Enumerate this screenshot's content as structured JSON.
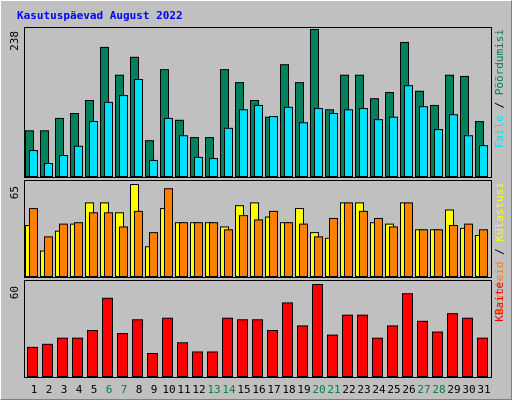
{
  "title": "Kasutuspäevad August 2022",
  "chart_data": [
    {
      "type": "bar",
      "ylim": [
        0,
        238
      ],
      "yticks": [
        238
      ],
      "legend_separator": " / ",
      "series": [
        {
          "name": "Pöördumisi",
          "color": "#00805c",
          "values": [
            74,
            74,
            94,
            102,
            123,
            209,
            164,
            193,
            58,
            173,
            91,
            63,
            63,
            173,
            152,
            123,
            96,
            181,
            152,
            238,
            108,
            164,
            164,
            126,
            136,
            217,
            138,
            115,
            164,
            162,
            89
          ]
        },
        {
          "name": "Faile",
          "color": "#00e0ff",
          "values": [
            42,
            21,
            34,
            49,
            89,
            120,
            131,
            157,
            26,
            94,
            66,
            31,
            29,
            78,
            108,
            115,
            97,
            112,
            87,
            110,
            102,
            108,
            110,
            92,
            96,
            147,
            113,
            76,
            100,
            66,
            50
          ]
        }
      ]
    },
    {
      "type": "bar",
      "ylim": [
        0,
        65
      ],
      "yticks": [
        65
      ],
      "legend_separator": " / ",
      "series": [
        {
          "name": "Külastusi",
          "color": "#ffff00",
          "values": [
            36,
            18,
            32,
            37,
            52,
            52,
            45,
            65,
            21,
            48,
            38,
            38,
            38,
            35,
            50,
            52,
            42,
            38,
            48,
            31,
            27,
            52,
            52,
            38,
            37,
            52,
            33,
            33,
            47,
            34,
            29
          ]
        },
        {
          "name": "Arvuteid",
          "color": "#ff8000",
          "values": [
            48,
            28,
            37,
            38,
            45,
            45,
            35,
            46,
            31,
            62,
            38,
            38,
            38,
            33,
            43,
            40,
            46,
            38,
            37,
            28,
            41,
            52,
            46,
            41,
            35,
            52,
            33,
            33,
            36,
            37,
            33
          ]
        }
      ]
    },
    {
      "type": "bar",
      "ylim": [
        0,
        60
      ],
      "yticks": [
        60
      ],
      "categories": [
        "1",
        "2",
        "3",
        "4",
        "5",
        "6",
        "7",
        "8",
        "9",
        "10",
        "11",
        "12",
        "13",
        "14",
        "15",
        "16",
        "17",
        "18",
        "19",
        "20",
        "21",
        "22",
        "23",
        "24",
        "25",
        "26",
        "27",
        "28",
        "29",
        "30",
        "31"
      ],
      "highlight_categories": [
        "6",
        "7",
        "13",
        "14",
        "20",
        "21",
        "27",
        "28"
      ],
      "highlight_color": "#008040",
      "series": [
        {
          "name": "KBaite",
          "color": "#ff0000",
          "values": [
            19,
            21,
            25,
            25,
            30,
            51,
            28,
            37,
            15,
            38,
            22,
            16,
            16,
            38,
            37,
            37,
            30,
            48,
            33,
            60,
            27,
            40,
            40,
            25,
            33,
            54,
            36,
            29,
            41,
            38,
            25
          ]
        }
      ]
    }
  ]
}
